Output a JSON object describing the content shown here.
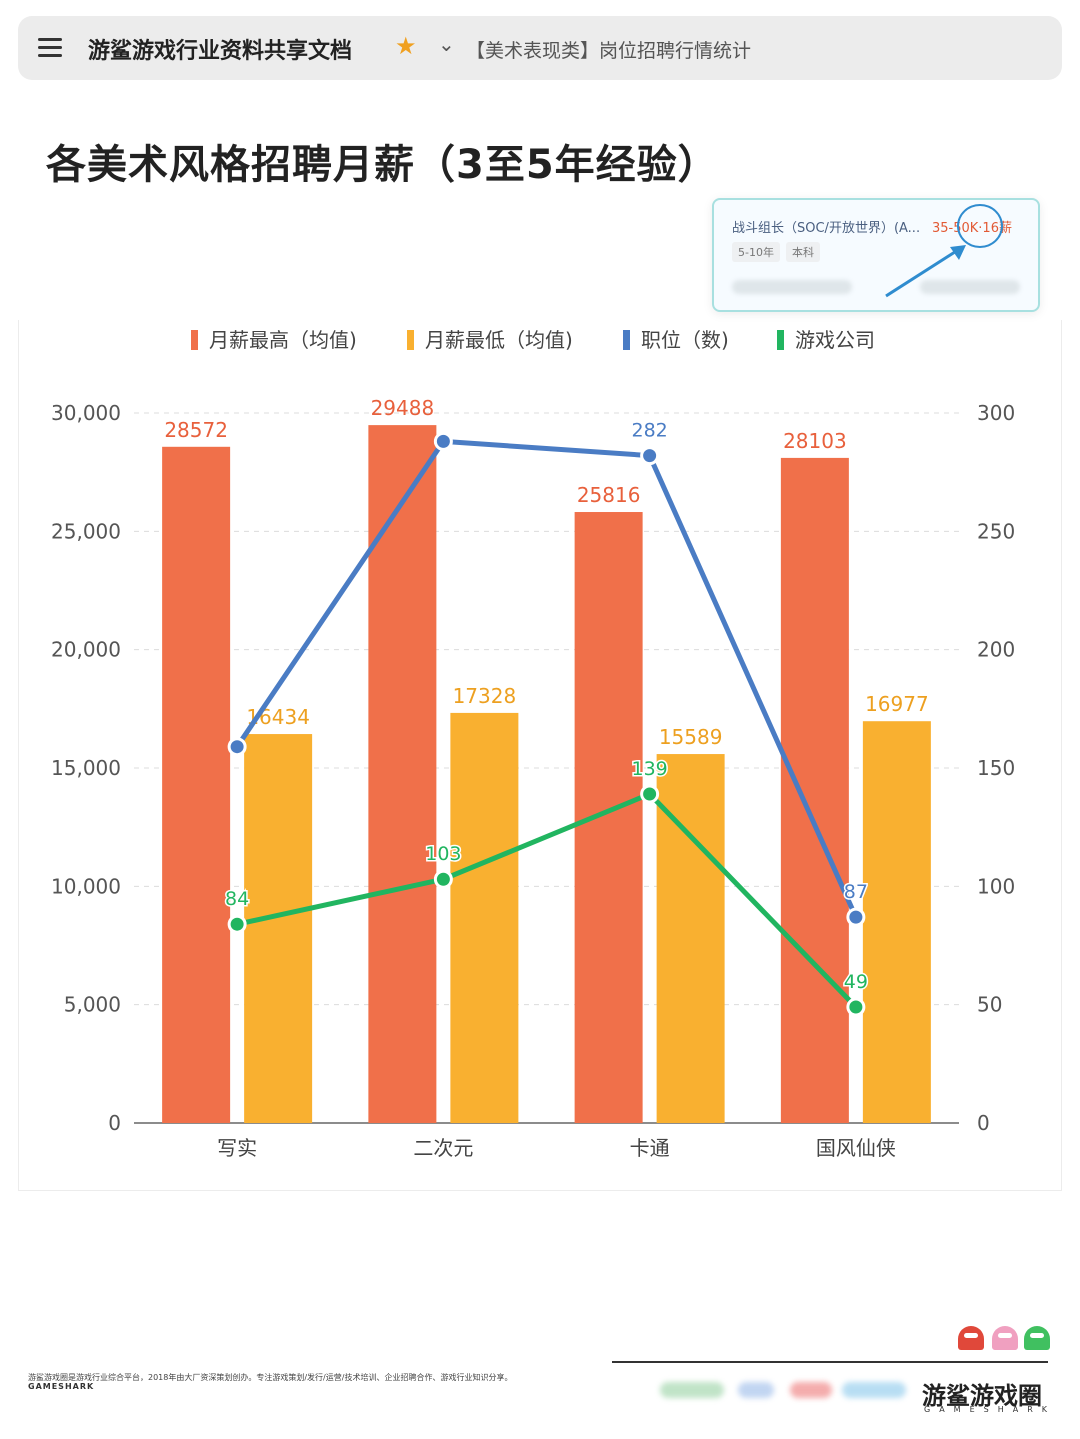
{
  "header": {
    "doc_title": "游鲨游戏行业资料共享文档",
    "sheet_tab": "【美术表现类】岗位招聘行情统计"
  },
  "page_title": "各美术风格招聘月薪（3至5年经验）",
  "job_card": {
    "name": "战斗组长（SOC/开放世界）(A...",
    "salary": "35-50K·16薪",
    "tags": [
      "5-10年",
      "本科"
    ]
  },
  "chart_data": {
    "type": "bar",
    "categories": [
      "写实",
      "二次元",
      "卡通",
      "国风仙侠"
    ],
    "series": [
      {
        "name": "月薪最高（均值)",
        "type": "bar",
        "axis": "left",
        "color": "#f0704a",
        "label_color": "#e8603c",
        "values": [
          28572,
          29488,
          25816,
          28103
        ]
      },
      {
        "name": "月薪最低（均值)",
        "type": "bar",
        "axis": "left",
        "color": "#f9b030",
        "label_color": "#eda020",
        "values": [
          16434,
          17328,
          15589,
          16977
        ]
      },
      {
        "name": "职位（数)",
        "type": "line",
        "axis": "right",
        "color": "#4a7cc4",
        "label_color": "#4a7cc4",
        "values": [
          159,
          288,
          282,
          87
        ],
        "labels": [
          "",
          "",
          "282",
          "87"
        ]
      },
      {
        "name": "游戏公司",
        "type": "line",
        "axis": "right",
        "color": "#21b560",
        "label_color": "#21b560",
        "values": [
          84,
          103,
          139,
          49
        ],
        "labels": [
          "84",
          "103",
          "139",
          "49"
        ]
      }
    ],
    "left_axis": {
      "range": [
        0,
        30000
      ],
      "ticks": [
        "0",
        "5,000",
        "10,000",
        "15,000",
        "20,000",
        "25,000",
        "30,000"
      ]
    },
    "right_axis": {
      "range": [
        0,
        300
      ],
      "ticks": [
        "0",
        "50",
        "100",
        "150",
        "200",
        "250",
        "300"
      ]
    },
    "legend_position": "top",
    "grid": "horizontal dashed"
  },
  "footer": {
    "description": "游鲨游戏圈是游戏行业综合平台，2018年由大厂资深策划创办。专注游戏策划/发行/运营/技术培训、企业招聘合作、游戏行业知识分享。",
    "small_brand": "GAMESHARK",
    "brand_name": "游鲨游戏圈",
    "brand_sub": "GAMESHARK"
  }
}
